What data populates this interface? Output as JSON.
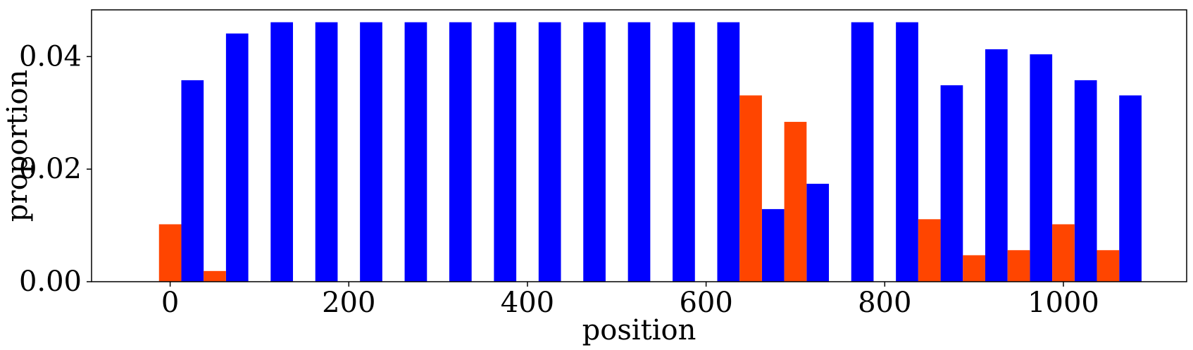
{
  "chart_data": {
    "type": "bar",
    "xlabel": "position",
    "ylabel": "proportion",
    "xlim": [
      -88,
      1138
    ],
    "ylim": [
      0,
      0.0483
    ],
    "xticks": [
      0,
      200,
      400,
      600,
      800,
      1000
    ],
    "xtick_labels": [
      "0",
      "200",
      "400",
      "600",
      "800",
      "1000"
    ],
    "yticks": [
      0.0,
      0.02,
      0.04
    ],
    "ytick_labels": [
      "0.00",
      "0.02",
      "0.04"
    ],
    "bar_width": 25,
    "grid": false,
    "legend": "none",
    "series": [
      {
        "color": "#0000ff",
        "x": [
          25,
          75,
          125,
          175,
          225,
          275,
          325,
          375,
          425,
          475,
          525,
          575,
          625,
          675,
          725,
          775,
          825,
          875,
          925,
          975,
          1025,
          1075
        ],
        "values": [
          0.0358,
          0.0441,
          0.0461,
          0.0461,
          0.0461,
          0.0461,
          0.0461,
          0.0461,
          0.0461,
          0.0461,
          0.0461,
          0.0461,
          0.0461,
          0.0129,
          0.0174,
          0.0461,
          0.0461,
          0.0349,
          0.0413,
          0.0404,
          0.0358,
          0.0331
        ]
      },
      {
        "color": "#ff4500",
        "x": [
          0,
          50,
          650,
          700,
          850,
          900,
          950,
          1000,
          1050
        ],
        "values": [
          0.0102,
          0.0019,
          0.0331,
          0.0284,
          0.0111,
          0.0047,
          0.0056,
          0.0102,
          0.0056
        ]
      }
    ]
  }
}
